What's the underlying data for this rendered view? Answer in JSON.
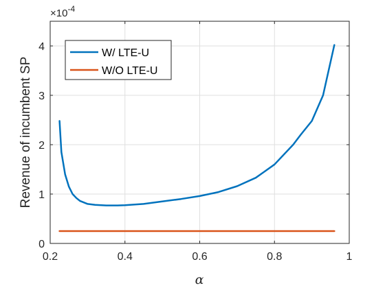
{
  "chart_data": {
    "type": "line",
    "xlabel": "α",
    "ylabel": "Revenue of incumbent SP",
    "y_exponent_label": "×10",
    "y_exponent_power": "-4",
    "xlim": [
      0.2,
      1.0
    ],
    "ylim": [
      0,
      4.5
    ],
    "grid": true,
    "legend_position": "top-left",
    "x_ticks": [
      0.2,
      0.4,
      0.6,
      0.8,
      1.0
    ],
    "x_tick_labels": [
      "0.2",
      "0.4",
      "0.6",
      "0.8",
      "1"
    ],
    "y_ticks": [
      0,
      1,
      2,
      3,
      4
    ],
    "y_tick_labels": [
      "0",
      "1",
      "2",
      "3",
      "4"
    ],
    "series": [
      {
        "name": "W/ LTE-U",
        "color": "#0072BD",
        "x": [
          0.225,
          0.23,
          0.24,
          0.25,
          0.26,
          0.27,
          0.28,
          0.3,
          0.32,
          0.35,
          0.38,
          0.4,
          0.45,
          0.5,
          0.55,
          0.6,
          0.65,
          0.7,
          0.75,
          0.8,
          0.85,
          0.87,
          0.9,
          0.93,
          0.96
        ],
        "y": [
          2.48,
          1.85,
          1.4,
          1.15,
          1.0,
          0.92,
          0.86,
          0.8,
          0.78,
          0.77,
          0.77,
          0.775,
          0.8,
          0.85,
          0.9,
          0.96,
          1.04,
          1.16,
          1.33,
          1.6,
          2.0,
          2.2,
          2.48,
          3.0,
          4.02
        ]
      },
      {
        "name": "W/O LTE-U",
        "color": "#D95319",
        "x": [
          0.225,
          0.96
        ],
        "y": [
          0.25,
          0.25
        ]
      }
    ]
  }
}
